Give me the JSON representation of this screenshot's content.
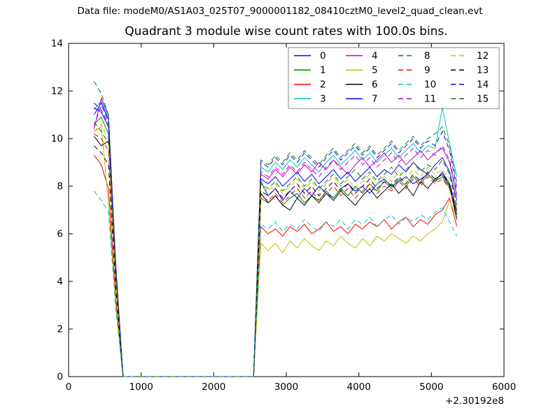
{
  "figure": {
    "suptitle": "Data file: modeM0/AS1A03_025T07_9000001182_08410cztM0_level2_quad_clean.evt",
    "axes_title": "Quadrant 3 module wise count rates with 100.0s bins."
  },
  "chart_data": {
    "type": "line",
    "title": "Quadrant 3 module wise count rates with 100.0s bins.",
    "suptitle": "Data file: modeM0/AS1A03_025T07_9000001182_08410cztM0_level2_quad_clean.evt",
    "xlabel": "",
    "ylabel": "",
    "xlim": [
      0,
      6000
    ],
    "ylim": [
      0,
      14
    ],
    "xticks": [
      0,
      1000,
      2000,
      3000,
      4000,
      5000,
      6000
    ],
    "yticks": [
      0,
      2,
      4,
      6,
      8,
      10,
      12,
      14
    ],
    "x_offset_label": "+2.30192e8",
    "grid": false,
    "legend_position": "upper right",
    "legend_columns": 4,
    "legend_order": "column-major",
    "palette": {
      "blue": "#0000ff",
      "green": "#008000",
      "red": "#ff0000",
      "cyan": "#00bfbf",
      "magenta": "#bf00bf",
      "yellow": "#bfbf00",
      "black": "#000000"
    },
    "x": [
      350,
      450,
      550,
      650,
      750,
      850,
      950,
      1050,
      1150,
      1250,
      1350,
      1450,
      1550,
      1650,
      1750,
      1850,
      1950,
      2050,
      2150,
      2250,
      2350,
      2450,
      2550,
      2650,
      2750,
      2850,
      2950,
      3050,
      3150,
      3250,
      3350,
      3450,
      3550,
      3650,
      3750,
      3850,
      3950,
      4050,
      4150,
      4250,
      4350,
      4450,
      4550,
      4650,
      4750,
      4850,
      4950,
      5050,
      5150,
      5250,
      5350
    ],
    "series": [
      {
        "name": "0",
        "color": "#0000ff",
        "linestyle": "solid",
        "y": [
          11.0,
          11.5,
          10.8,
          4.5,
          0,
          0,
          0,
          0,
          0,
          0,
          0,
          0,
          0,
          0,
          0,
          0,
          0,
          0,
          0,
          0,
          0,
          0,
          0,
          8.2,
          7.6,
          7.9,
          7.4,
          7.8,
          7.5,
          7.9,
          7.6,
          8.0,
          7.7,
          7.5,
          7.9,
          8.1,
          7.8,
          8.0,
          7.7,
          8.1,
          8.3,
          8.0,
          8.2,
          8.4,
          8.1,
          8.3,
          8.5,
          8.2,
          8.6,
          8.1,
          7.0
        ]
      },
      {
        "name": "1",
        "color": "#008000",
        "linestyle": "solid",
        "y": [
          10.6,
          10.9,
          10.2,
          4.2,
          0,
          0,
          0,
          0,
          0,
          0,
          0,
          0,
          0,
          0,
          0,
          0,
          0,
          0,
          0,
          0,
          0,
          0,
          0,
          7.5,
          7.3,
          7.6,
          7.2,
          7.5,
          7.7,
          7.3,
          7.6,
          7.4,
          7.8,
          7.5,
          7.9,
          7.6,
          8.0,
          7.7,
          8.1,
          7.8,
          8.2,
          7.9,
          8.3,
          8.0,
          8.4,
          8.1,
          8.5,
          8.2,
          8.4,
          7.9,
          6.8
        ]
      },
      {
        "name": "2",
        "color": "#ff0000",
        "linestyle": "solid",
        "y": [
          9.3,
          8.9,
          7.9,
          3.2,
          0,
          0,
          0,
          0,
          0,
          0,
          0,
          0,
          0,
          0,
          0,
          0,
          0,
          0,
          0,
          0,
          0,
          0,
          0,
          6.3,
          6.0,
          6.2,
          5.9,
          6.3,
          6.1,
          6.4,
          6.0,
          6.2,
          6.5,
          6.1,
          6.3,
          6.0,
          6.4,
          6.2,
          6.5,
          6.3,
          6.6,
          6.2,
          6.5,
          6.7,
          6.3,
          6.6,
          6.4,
          6.8,
          7.0,
          7.5,
          6.3
        ]
      },
      {
        "name": "3",
        "color": "#00bfbf",
        "linestyle": "solid",
        "y": [
          11.2,
          11.6,
          10.9,
          4.6,
          0,
          0,
          0,
          0,
          0,
          0,
          0,
          0,
          0,
          0,
          0,
          0,
          0,
          0,
          0,
          0,
          0,
          0,
          0,
          8.8,
          8.6,
          9.0,
          8.7,
          9.1,
          8.8,
          9.2,
          8.9,
          8.6,
          9.0,
          9.3,
          8.9,
          9.2,
          9.5,
          9.1,
          9.4,
          9.0,
          9.3,
          9.6,
          9.2,
          9.5,
          9.8,
          9.4,
          9.7,
          9.6,
          11.3,
          9.8,
          8.4
        ]
      },
      {
        "name": "4",
        "color": "#bf00bf",
        "linestyle": "solid",
        "y": [
          10.4,
          11.7,
          11.0,
          4.7,
          0,
          0,
          0,
          0,
          0,
          0,
          0,
          0,
          0,
          0,
          0,
          0,
          0,
          0,
          0,
          0,
          0,
          0,
          0,
          8.5,
          8.3,
          8.7,
          8.4,
          8.8,
          8.5,
          8.9,
          8.6,
          9.0,
          8.7,
          9.1,
          8.8,
          8.5,
          8.9,
          9.2,
          8.8,
          9.1,
          9.4,
          9.0,
          9.3,
          8.9,
          9.2,
          9.5,
          9.1,
          9.4,
          9.6,
          9.0,
          7.6
        ]
      },
      {
        "name": "5",
        "color": "#bfbf00",
        "linestyle": "solid",
        "y": [
          10.3,
          10.5,
          7.3,
          3.0,
          0,
          0,
          0,
          0,
          0,
          0,
          0,
          0,
          0,
          0,
          0,
          0,
          0,
          0,
          0,
          0,
          0,
          0,
          0,
          5.6,
          5.3,
          5.6,
          5.2,
          5.7,
          5.4,
          5.8,
          5.5,
          5.3,
          5.7,
          5.5,
          5.9,
          5.6,
          5.4,
          5.8,
          5.5,
          5.9,
          5.7,
          6.0,
          5.8,
          5.6,
          5.9,
          5.7,
          6.0,
          6.2,
          6.5,
          7.4,
          6.7
        ]
      },
      {
        "name": "6",
        "color": "#000000",
        "linestyle": "solid",
        "y": [
          10.1,
          9.7,
          9.9,
          4.0,
          0,
          0,
          0,
          0,
          0,
          0,
          0,
          0,
          0,
          0,
          0,
          0,
          0,
          0,
          0,
          0,
          0,
          0,
          0,
          7.7,
          7.3,
          7.6,
          7.2,
          7.0,
          7.5,
          7.2,
          7.6,
          7.3,
          7.7,
          7.4,
          7.8,
          7.5,
          7.2,
          7.6,
          7.9,
          7.5,
          7.8,
          8.1,
          7.7,
          8.0,
          7.6,
          8.2,
          7.9,
          8.3,
          8.5,
          8.0,
          6.6
        ]
      },
      {
        "name": "7",
        "color": "#0000ff",
        "linestyle": "solid",
        "y": [
          11.3,
          11.1,
          10.5,
          4.4,
          0,
          0,
          0,
          0,
          0,
          0,
          0,
          0,
          0,
          0,
          0,
          0,
          0,
          0,
          0,
          0,
          0,
          0,
          0,
          8.3,
          8.1,
          8.4,
          8.0,
          8.3,
          8.6,
          8.2,
          8.5,
          8.1,
          8.4,
          8.7,
          8.3,
          8.6,
          8.2,
          8.5,
          8.8,
          8.4,
          8.7,
          8.5,
          8.9,
          8.6,
          9.0,
          8.7,
          8.5,
          8.9,
          9.2,
          8.6,
          7.4
        ]
      },
      {
        "name": "8",
        "color": "#008000",
        "linestyle": "dashed",
        "y": [
          10.7,
          10.3,
          9.8,
          4.1,
          0,
          0,
          0,
          0,
          0,
          0,
          0,
          0,
          0,
          0,
          0,
          0,
          0,
          0,
          0,
          0,
          0,
          0,
          0,
          8.1,
          7.9,
          8.2,
          7.8,
          8.1,
          8.4,
          8.0,
          8.3,
          7.9,
          8.2,
          8.5,
          8.1,
          8.4,
          8.7,
          8.3,
          8.6,
          8.2,
          8.5,
          8.8,
          8.4,
          8.7,
          9.0,
          8.6,
          8.9,
          8.7,
          9.1,
          8.5,
          7.2
        ]
      },
      {
        "name": "9",
        "color": "#ff0000",
        "linestyle": "dashed",
        "y": [
          10.2,
          10.0,
          9.5,
          3.9,
          0,
          0,
          0,
          0,
          0,
          0,
          0,
          0,
          0,
          0,
          0,
          0,
          0,
          0,
          0,
          0,
          0,
          0,
          0,
          7.6,
          7.4,
          7.7,
          7.3,
          7.6,
          7.9,
          7.5,
          7.8,
          7.4,
          7.7,
          8.0,
          7.6,
          7.9,
          7.5,
          7.8,
          8.1,
          7.7,
          8.0,
          7.8,
          8.2,
          7.9,
          8.3,
          8.0,
          8.4,
          8.1,
          8.3,
          7.9,
          6.9
        ]
      },
      {
        "name": "10",
        "color": "#00bfbf",
        "linestyle": "dashed",
        "y": [
          7.8,
          7.4,
          6.9,
          2.8,
          0,
          0,
          0,
          0,
          0,
          0,
          0,
          0,
          0,
          0,
          0,
          0,
          0,
          0,
          0,
          0,
          0,
          0,
          0,
          6.4,
          6.2,
          6.5,
          6.1,
          6.4,
          6.2,
          6.6,
          6.3,
          6.1,
          6.5,
          6.3,
          6.6,
          6.2,
          6.6,
          6.4,
          6.7,
          6.3,
          6.6,
          6.8,
          6.4,
          6.7,
          6.5,
          6.8,
          6.6,
          6.9,
          7.1,
          6.5,
          5.9
        ]
      },
      {
        "name": "11",
        "color": "#bf00bf",
        "linestyle": "dashed",
        "y": [
          10.5,
          11.4,
          10.7,
          4.5,
          0,
          0,
          0,
          0,
          0,
          0,
          0,
          0,
          0,
          0,
          0,
          0,
          0,
          0,
          0,
          0,
          0,
          0,
          0,
          8.6,
          8.4,
          8.8,
          8.5,
          8.9,
          8.6,
          9.0,
          8.7,
          8.4,
          8.8,
          9.1,
          8.7,
          9.0,
          9.3,
          8.9,
          9.2,
          8.8,
          9.1,
          9.4,
          9.0,
          9.3,
          9.6,
          9.2,
          9.5,
          9.3,
          9.7,
          9.1,
          7.7
        ]
      },
      {
        "name": "12",
        "color": "#bfbf00",
        "linestyle": "dashed",
        "y": [
          10.3,
          10.6,
          9.9,
          4.1,
          0,
          0,
          0,
          0,
          0,
          0,
          0,
          0,
          0,
          0,
          0,
          0,
          0,
          0,
          0,
          0,
          0,
          0,
          0,
          8.0,
          7.8,
          8.1,
          7.7,
          8.0,
          8.3,
          7.9,
          8.2,
          7.8,
          8.1,
          8.4,
          8.0,
          8.3,
          7.9,
          8.2,
          8.5,
          8.1,
          8.4,
          8.2,
          8.6,
          8.3,
          8.7,
          8.4,
          8.8,
          8.5,
          8.7,
          8.3,
          7.1
        ]
      },
      {
        "name": "13",
        "color": "#000000",
        "linestyle": "dashed",
        "y": [
          9.7,
          9.4,
          8.9,
          3.7,
          0,
          0,
          0,
          0,
          0,
          0,
          0,
          0,
          0,
          0,
          0,
          0,
          0,
          0,
          0,
          0,
          0,
          0,
          0,
          7.8,
          7.6,
          7.9,
          7.5,
          7.8,
          8.1,
          7.7,
          8.0,
          7.6,
          7.9,
          8.2,
          7.8,
          8.1,
          7.7,
          8.0,
          8.3,
          7.9,
          8.2,
          8.0,
          8.4,
          8.1,
          8.5,
          8.2,
          8.6,
          8.3,
          8.5,
          8.1,
          6.8
        ]
      },
      {
        "name": "14",
        "color": "#0000ff",
        "linestyle": "dashed",
        "y": [
          11.5,
          11.2,
          10.6,
          4.5,
          0,
          0,
          0,
          0,
          0,
          0,
          0,
          0,
          0,
          0,
          0,
          0,
          0,
          0,
          0,
          0,
          0,
          0,
          0,
          9.0,
          8.8,
          9.2,
          8.9,
          9.3,
          9.0,
          9.4,
          9.1,
          8.8,
          9.2,
          9.5,
          9.1,
          9.4,
          9.7,
          9.3,
          9.6,
          9.2,
          9.5,
          9.8,
          9.4,
          9.7,
          10.0,
          9.6,
          9.9,
          9.7,
          10.3,
          9.5,
          7.9
        ]
      },
      {
        "name": "15",
        "color": "#008000",
        "linestyle": "dashed",
        "y": [
          12.4,
          11.9,
          11.0,
          4.8,
          0,
          0,
          0,
          0,
          0,
          0,
          0,
          0,
          0,
          0,
          0,
          0,
          0,
          0,
          0,
          0,
          0,
          0,
          0,
          9.1,
          8.9,
          9.3,
          9.0,
          9.4,
          9.1,
          9.5,
          9.2,
          8.9,
          9.3,
          9.6,
          9.2,
          9.5,
          9.8,
          9.4,
          9.7,
          9.3,
          9.6,
          9.9,
          9.5,
          9.8,
          10.1,
          9.7,
          10.0,
          10.2,
          10.5,
          9.7,
          8.1
        ]
      }
    ]
  }
}
